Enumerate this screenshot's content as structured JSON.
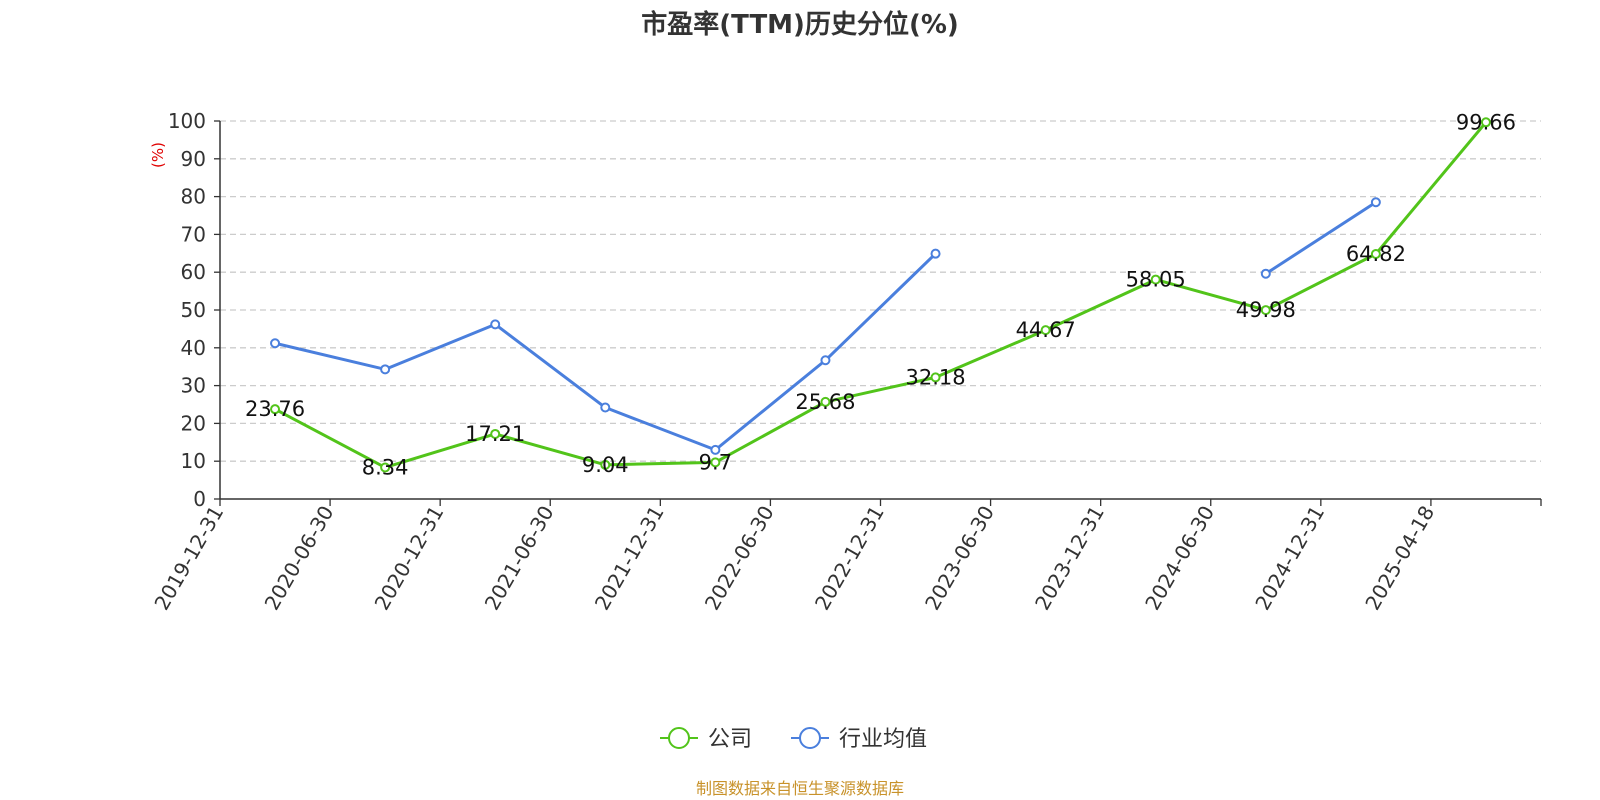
{
  "chart_data": {
    "type": "line",
    "title": "市盈率(TTM)历史分位(%)",
    "ylabel": "(%)",
    "xlabel": "",
    "ylim": [
      0,
      100
    ],
    "yticks": [
      0,
      10,
      20,
      30,
      40,
      50,
      60,
      70,
      80,
      90,
      100
    ],
    "grid": true,
    "legend_position": "bottom",
    "categories": [
      "2019-12-31",
      "2020-06-30",
      "2020-12-31",
      "2021-06-30",
      "2021-12-31",
      "2022-06-30",
      "2022-12-31",
      "2023-06-30",
      "2023-12-31",
      "2024-06-30",
      "2024-12-31",
      "2025-04-18"
    ],
    "series": [
      {
        "name": "公司",
        "color": "#52c41a",
        "show_labels": true,
        "values": [
          23.76,
          8.34,
          17.21,
          9.04,
          9.7,
          25.68,
          32.18,
          44.67,
          58.05,
          49.98,
          64.82,
          99.66
        ]
      },
      {
        "name": "行业均值",
        "color": "#4a7fdd",
        "show_labels": false,
        "values": [
          41.2,
          34.3,
          46.2,
          24.2,
          13.0,
          36.7,
          64.9,
          null,
          null,
          59.6,
          78.5,
          null
        ]
      }
    ],
    "source": "制图数据来自恒生聚源数据库"
  }
}
